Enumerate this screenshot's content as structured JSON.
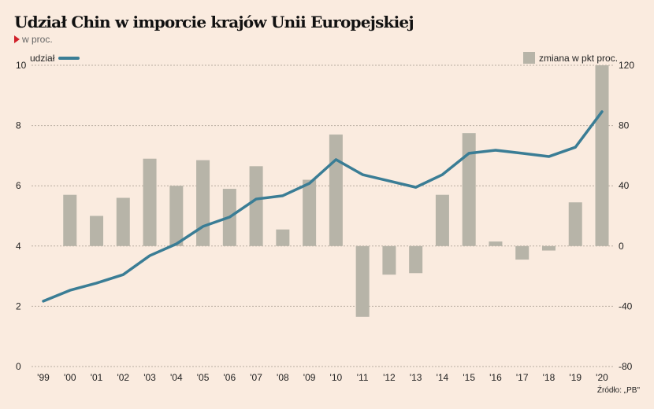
{
  "chart_data": {
    "type": "bar+line",
    "title": "Udział Chin w imporcie krajów Unii Europejskiej",
    "subtitle": "w proc.",
    "source": "Źródło: „PB\"",
    "categories": [
      "'99",
      "'00",
      "'01",
      "'02",
      "'03",
      "'04",
      "'05",
      "'06",
      "'07",
      "'08",
      "'09",
      "'10",
      "'11",
      "'12",
      "'13",
      "'14",
      "'15",
      "'16",
      "'17",
      "'18",
      "'19",
      "'20"
    ],
    "series": [
      {
        "name": "udział",
        "type": "line",
        "axis": "left",
        "color": "#3a7d95",
        "values": [
          2.17,
          2.53,
          2.77,
          3.05,
          3.68,
          4.07,
          4.65,
          4.96,
          5.56,
          5.67,
          6.08,
          6.87,
          6.37,
          6.16,
          5.95,
          6.37,
          7.08,
          7.18,
          7.08,
          6.97,
          7.28,
          8.46
        ]
      },
      {
        "name": "zmiana w pkt proc.",
        "type": "bar",
        "axis": "right",
        "color": "#b7b4a8",
        "values": [
          null,
          34,
          20,
          32,
          58,
          40,
          57,
          38,
          53,
          11,
          44,
          74,
          -47,
          -19,
          -18,
          34,
          75,
          3,
          -9,
          -3,
          29,
          120
        ]
      }
    ],
    "left_axis": {
      "range": [
        0,
        10
      ],
      "ticks": [
        "0",
        "2",
        "4",
        "6",
        "8",
        "10"
      ]
    },
    "right_axis": {
      "range": [
        -80,
        120
      ],
      "ticks": [
        "-80",
        "-40",
        "0",
        "40",
        "80",
        "120"
      ]
    },
    "grid": true,
    "legend_placement": "top"
  }
}
